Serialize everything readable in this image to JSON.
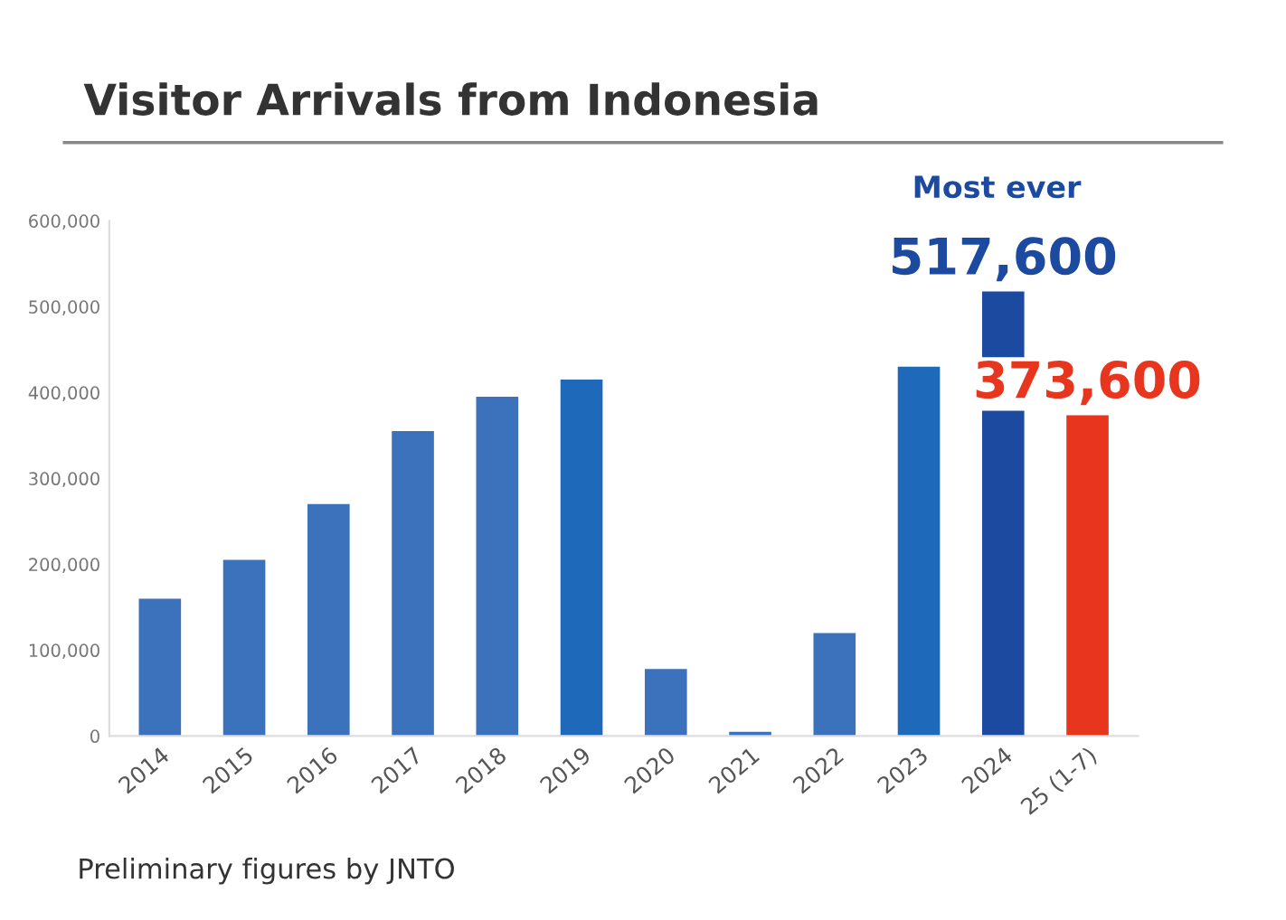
{
  "chart_data": {
    "type": "bar",
    "title": "Visitor Arrivals from Indonesia",
    "categories": [
      "2014",
      "2015",
      "2016",
      "2017",
      "2018",
      "2019",
      "2020",
      "2021",
      "2022",
      "2023",
      "2024",
      "25 (1-7)"
    ],
    "values": [
      160000,
      205000,
      270000,
      355000,
      395000,
      415000,
      78000,
      5000,
      120000,
      430000,
      517600,
      373600
    ],
    "colors": [
      "#3b72bb",
      "#3b72bb",
      "#3b72bb",
      "#3b72bb",
      "#3b72bb",
      "#1f69bb",
      "#3b72bb",
      "#3b72bb",
      "#3b72bb",
      "#1f69bb",
      "#1c4aa0",
      "#e8361e"
    ],
    "value_labels": [
      null,
      null,
      null,
      null,
      null,
      null,
      null,
      null,
      null,
      null,
      "517,600",
      "373,600"
    ],
    "ylim": [
      0,
      600000
    ],
    "yticks": [
      0,
      {
        "value": 100000,
        "label": "100,000"
      },
      {
        "value": 200000,
        "label": "200,000"
      },
      {
        "value": 300000,
        "label": "300,000"
      },
      {
        "value": 400000,
        "label": "400,000"
      },
      {
        "value": 500000,
        "label": "500,000"
      },
      {
        "value": 600000,
        "label": "600,000"
      }
    ],
    "grid": false,
    "annotations": [
      "Most ever",
      "Preliminary figures by JNTO"
    ]
  }
}
